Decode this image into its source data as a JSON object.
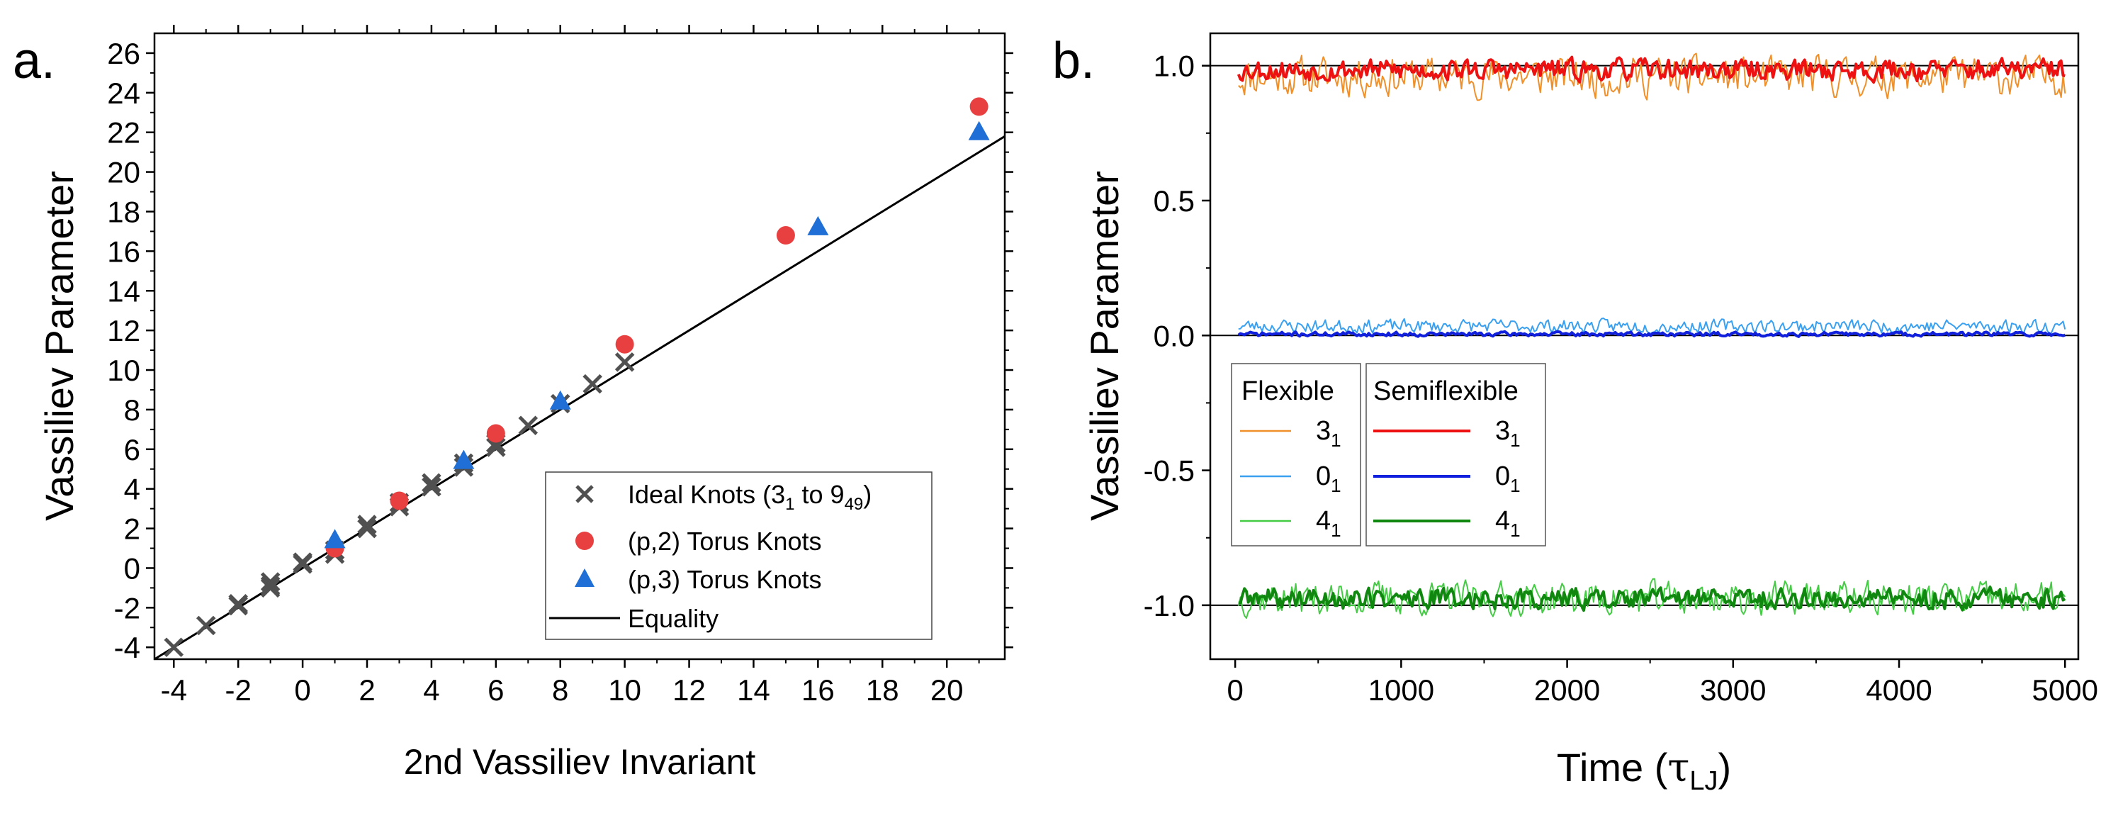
{
  "figure": {
    "panel_a_label": "a.",
    "panel_b_label": "b."
  },
  "colors": {
    "ideal": "#505050",
    "torus2": "#e84040",
    "torus3": "#1f6fd6",
    "equality": "#000000",
    "flex31": "#f0902a",
    "flex01": "#3aa0f0",
    "flex41": "#44cc44",
    "semi31": "#ee1111",
    "semi01": "#1020dd",
    "semi41": "#108810"
  },
  "chart_data": [
    {
      "type": "scatter",
      "xlabel": "2nd Vassiliev Invariant",
      "ylabel": "Vassiliev Parameter",
      "xlim": [
        -4.6,
        21.8
      ],
      "ylim": [
        -4.6,
        27
      ],
      "xticks": [
        -4,
        -2,
        0,
        2,
        4,
        6,
        8,
        10,
        12,
        14,
        16,
        18,
        20
      ],
      "yticks": [
        -4,
        -2,
        0,
        2,
        4,
        6,
        8,
        10,
        12,
        14,
        16,
        18,
        20,
        22,
        24,
        26
      ],
      "series": [
        {
          "name": "Ideal Knots (3",
          "name_sub": "1",
          "name_mid": " to 9",
          "name_sub2": "49",
          "name_end": ")",
          "marker": "x",
          "points": [
            [
              -4,
              -4
            ],
            [
              -3,
              -2.9
            ],
            [
              -2,
              -1.8
            ],
            [
              -2,
              -1.9
            ],
            [
              -1,
              -0.7
            ],
            [
              -1,
              -0.9
            ],
            [
              -1,
              -1.0
            ],
            [
              0,
              0.2
            ],
            [
              0,
              0.3
            ],
            [
              1,
              0.7
            ],
            [
              1,
              0.9
            ],
            [
              2,
              2.0
            ],
            [
              2,
              2.2
            ],
            [
              3,
              3.1
            ],
            [
              3,
              3.3
            ],
            [
              4,
              4.1
            ],
            [
              4,
              4.3
            ],
            [
              5,
              5.1
            ],
            [
              5,
              5.3
            ],
            [
              6,
              6.1
            ],
            [
              6,
              6.3
            ],
            [
              7,
              7.2
            ],
            [
              8,
              8.3
            ],
            [
              9,
              9.3
            ],
            [
              10,
              10.4
            ]
          ]
        },
        {
          "name": "(p,2) Torus Knots",
          "marker": "circle",
          "points": [
            [
              1,
              1.0
            ],
            [
              3,
              3.4
            ],
            [
              6,
              6.8
            ],
            [
              10,
              11.3
            ],
            [
              15,
              16.8
            ],
            [
              21,
              23.3
            ]
          ]
        },
        {
          "name": "(p,3) Torus Knots",
          "marker": "triangle",
          "points": [
            [
              1,
              1.4
            ],
            [
              5,
              5.4
            ],
            [
              8,
              8.4
            ],
            [
              16,
              17.2
            ],
            [
              21,
              22.0
            ]
          ]
        },
        {
          "name": "Equality",
          "marker": "line",
          "points": [
            [
              -4.6,
              -4.6
            ],
            [
              21.8,
              21.8
            ]
          ]
        }
      ]
    },
    {
      "type": "line",
      "xlabel_main": "Time (",
      "xlabel_greek": "τ",
      "xlabel_sub": "LJ",
      "xlabel_end": ")",
      "ylabel": "Vassiliev Parameter",
      "xlim": [
        -150,
        5080
      ],
      "ylim": [
        -1.2,
        1.12
      ],
      "xticks": [
        0,
        1000,
        2000,
        3000,
        4000,
        5000
      ],
      "yticks": [
        1.0,
        0.5,
        0.0,
        -0.5,
        -1.0
      ],
      "ytick_labels": [
        "1.0",
        "0.5",
        "0.0",
        "-0.5",
        "-1.0"
      ],
      "reference_lines": [
        1,
        0,
        -1
      ],
      "legend_titles": [
        "Flexible",
        "Semiflexible"
      ],
      "series": [
        {
          "name": "3",
          "sub": "1",
          "group": "Flexible",
          "base": 0.96,
          "amp": 0.065,
          "seed": 11
        },
        {
          "name": "0",
          "sub": "1",
          "group": "Flexible",
          "base": 0.035,
          "amp": 0.022,
          "seed": 23
        },
        {
          "name": "4",
          "sub": "1",
          "group": "Flexible",
          "base": -0.975,
          "amp": 0.055,
          "seed": 37
        },
        {
          "name": "3",
          "sub": "1",
          "group": "Semiflexible",
          "base": 0.985,
          "amp": 0.035,
          "seed": 53
        },
        {
          "name": "0",
          "sub": "1",
          "group": "Semiflexible",
          "base": 0.005,
          "amp": 0.007,
          "seed": 71
        },
        {
          "name": "4",
          "sub": "1",
          "group": "Semiflexible",
          "base": -0.975,
          "amp": 0.035,
          "seed": 89
        }
      ]
    }
  ]
}
